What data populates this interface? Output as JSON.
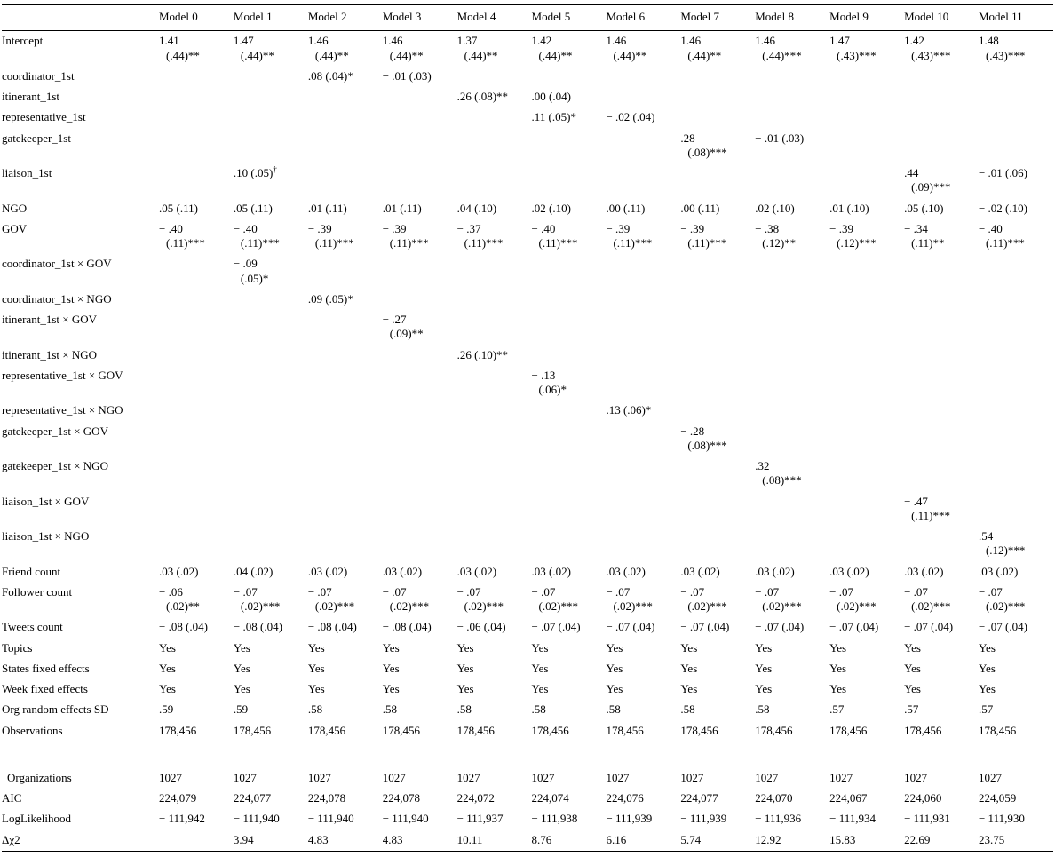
{
  "colors": {
    "background": "#ffffff",
    "text": "#000000",
    "rule": "#000000"
  },
  "table": {
    "columns": [
      "",
      "Model 0",
      "Model 1",
      "Model 2",
      "Model 3",
      "Model 4",
      "Model 5",
      "Model 6",
      "Model 7",
      "Model 8",
      "Model 9",
      "Model 10",
      "Model 11"
    ],
    "rows": [
      {
        "label": "Intercept",
        "cells": [
          "1.41\n(.44)**",
          "1.47\n(.44)**",
          "1.46\n(.44)**",
          "1.46\n(.44)**",
          "1.37\n(.44)**",
          "1.42\n(.44)**",
          "1.46\n(.44)**",
          "1.46\n(.44)**",
          "1.46\n(.44)***",
          "1.47\n(.43)***",
          "1.42\n(.43)***",
          "1.48\n(.43)***"
        ]
      },
      {
        "label": "coordinator_1st",
        "cells": [
          "",
          "",
          ".08 (.04)*",
          "− .01 (.03)",
          "",
          "",
          "",
          "",
          "",
          "",
          "",
          ""
        ]
      },
      {
        "label": "itinerant_1st",
        "cells": [
          "",
          "",
          "",
          "",
          ".26 (.08)**",
          ".00 (.04)",
          "",
          "",
          "",
          "",
          "",
          ""
        ]
      },
      {
        "label": "representative_1st",
        "cells": [
          "",
          "",
          "",
          "",
          "",
          ".11 (.05)*",
          "− .02 (.04)",
          "",
          "",
          "",
          "",
          ""
        ]
      },
      {
        "label": "gatekeeper_1st",
        "cells": [
          "",
          "",
          "",
          "",
          "",
          "",
          "",
          ".28\n(.08)***",
          "− .01 (.03)",
          "",
          "",
          ""
        ]
      },
      {
        "label": "liaison_1st",
        "cells": [
          "",
          ".10 (.05)†",
          "",
          "",
          "",
          "",
          "",
          "",
          "",
          "",
          ".44\n(.09)***",
          "− .01 (.06)"
        ]
      },
      {
        "label": "NGO",
        "cells": [
          ".05 (.11)",
          ".05 (.11)",
          ".01 (.11)",
          ".01 (.11)",
          ".04 (.10)",
          ".02 (.10)",
          ".00 (.11)",
          ".00 (.11)",
          ".02 (.10)",
          ".01 (.10)",
          ".05 (.10)",
          "− .02 (.10)"
        ]
      },
      {
        "label": "GOV",
        "cells": [
          "− .40\n(.11)***",
          "− .40\n(.11)***",
          "− .39\n(.11)***",
          "− .39\n(.11)***",
          "− .37\n(.11)***",
          "− .40\n(.11)***",
          "− .39\n(.11)***",
          "− .39\n(.11)***",
          "− .38\n(.12)**",
          "− .39\n(.12)***",
          "− .34\n(.11)**",
          "− .40\n(.11)***"
        ]
      },
      {
        "label": "coordinator_1st × GOV",
        "cells": [
          "",
          "− .09\n(.05)*",
          "",
          "",
          "",
          "",
          "",
          "",
          "",
          "",
          "",
          ""
        ]
      },
      {
        "label": "coordinator_1st × NGO",
        "cells": [
          "",
          "",
          ".09 (.05)*",
          "",
          "",
          "",
          "",
          "",
          "",
          "",
          "",
          ""
        ]
      },
      {
        "label": "itinerant_1st × GOV",
        "cells": [
          "",
          "",
          "",
          "− .27\n(.09)**",
          "",
          "",
          "",
          "",
          "",
          "",
          "",
          ""
        ]
      },
      {
        "label": "itinerant_1st × NGO",
        "cells": [
          "",
          "",
          "",
          "",
          ".26 (.10)**",
          "",
          "",
          "",
          "",
          "",
          "",
          ""
        ]
      },
      {
        "label": "representative_1st × GOV",
        "cells": [
          "",
          "",
          "",
          "",
          "",
          "− .13\n(.06)*",
          "",
          "",
          "",
          "",
          "",
          ""
        ]
      },
      {
        "label": "representative_1st × NGO",
        "cells": [
          "",
          "",
          "",
          "",
          "",
          "",
          ".13 (.06)*",
          "",
          "",
          "",
          "",
          ""
        ]
      },
      {
        "label": "gatekeeper_1st × GOV",
        "cells": [
          "",
          "",
          "",
          "",
          "",
          "",
          "",
          "− .28\n(.08)***",
          "",
          "",
          "",
          ""
        ]
      },
      {
        "label": "gatekeeper_1st × NGO",
        "cells": [
          "",
          "",
          "",
          "",
          "",
          "",
          "",
          "",
          ".32\n(.08)***",
          "",
          "",
          ""
        ]
      },
      {
        "label": "liaison_1st × GOV",
        "cells": [
          "",
          "",
          "",
          "",
          "",
          "",
          "",
          "",
          "",
          "",
          "− .47\n(.11)***",
          ""
        ]
      },
      {
        "label": "liaison_1st × NGO",
        "cells": [
          "",
          "",
          "",
          "",
          "",
          "",
          "",
          "",
          "",
          "",
          "",
          ".54\n(.12)***"
        ]
      },
      {
        "label": "Friend count",
        "cells": [
          ".03 (.02)",
          ".04 (.02)",
          ".03 (.02)",
          ".03 (.02)",
          ".03 (.02)",
          ".03 (.02)",
          ".03 (.02)",
          ".03 (.02)",
          ".03 (.02)",
          ".03 (.02)",
          ".03 (.02)",
          ".03 (.02)"
        ]
      },
      {
        "label": "Follower count",
        "cells": [
          "− .06\n(.02)**",
          "− .07\n(.02)***",
          "− .07\n(.02)***",
          "− .07\n(.02)***",
          "− .07\n(.02)***",
          "− .07\n(.02)***",
          "− .07\n(.02)***",
          "− .07\n(.02)***",
          "− .07\n(.02)***",
          "− .07\n(.02)***",
          "− .07\n(.02)***",
          "− .07\n(.02)***"
        ]
      },
      {
        "label": "Tweets count",
        "cells": [
          "− .08 (.04)",
          "− .08 (.04)",
          "− .08 (.04)",
          "− .08 (.04)",
          "− .06 (.04)",
          "− .07 (.04)",
          "− .07 (.04)",
          "− .07 (.04)",
          "− .07 (.04)",
          "− .07 (.04)",
          "− .07 (.04)",
          "− .07 (.04)"
        ]
      },
      {
        "label": "Topics",
        "cells": [
          "Yes",
          "Yes",
          "Yes",
          "Yes",
          "Yes",
          "Yes",
          "Yes",
          "Yes",
          "Yes",
          "Yes",
          "Yes",
          "Yes"
        ]
      },
      {
        "label": "States fixed effects",
        "cells": [
          "Yes",
          "Yes",
          "Yes",
          "Yes",
          "Yes",
          "Yes",
          "Yes",
          "Yes",
          "Yes",
          "Yes",
          "Yes",
          "Yes"
        ]
      },
      {
        "label": "Week fixed effects",
        "cells": [
          "Yes",
          "Yes",
          "Yes",
          "Yes",
          "Yes",
          "Yes",
          "Yes",
          "Yes",
          "Yes",
          "Yes",
          "Yes",
          "Yes"
        ]
      },
      {
        "label": "Org random effects SD",
        "cells": [
          ".59",
          ".59",
          ".58",
          ".58",
          ".58",
          ".58",
          ".58",
          ".58",
          ".58",
          ".57",
          ".57",
          ".57"
        ]
      },
      {
        "label": "Observations",
        "cells": [
          "178,456",
          "178,456",
          "178,456",
          "178,456",
          "178,456",
          "178,456",
          "178,456",
          "178,456",
          "178,456",
          "178,456",
          "178,456",
          "178,456"
        ]
      },
      {
        "label": "Organizations",
        "gap_before": true,
        "indent": true,
        "cells": [
          "1027",
          "1027",
          "1027",
          "1027",
          "1027",
          "1027",
          "1027",
          "1027",
          "1027",
          "1027",
          "1027",
          "1027"
        ]
      },
      {
        "label": "AIC",
        "cells": [
          "224,079",
          "224,077",
          "224,078",
          "224,078",
          "224,072",
          "224,074",
          "224,076",
          "224,077",
          "224,070",
          "224,067",
          "224,060",
          "224,059"
        ]
      },
      {
        "label": "LogLikelihood",
        "cells": [
          "− 111,942",
          "− 111,940",
          "− 111,940",
          "− 111,940",
          "− 111,937",
          "− 111,938",
          "− 111,939",
          "− 111,939",
          "− 111,936",
          "− 111,934",
          "− 111,931",
          "− 111,930"
        ]
      },
      {
        "label": "Δχ2",
        "cells": [
          "",
          "3.94",
          "4.83",
          "4.83",
          "10.11",
          "8.76",
          "6.16",
          "5.74",
          "12.92",
          "15.83",
          "22.69",
          "23.75"
        ]
      }
    ]
  }
}
